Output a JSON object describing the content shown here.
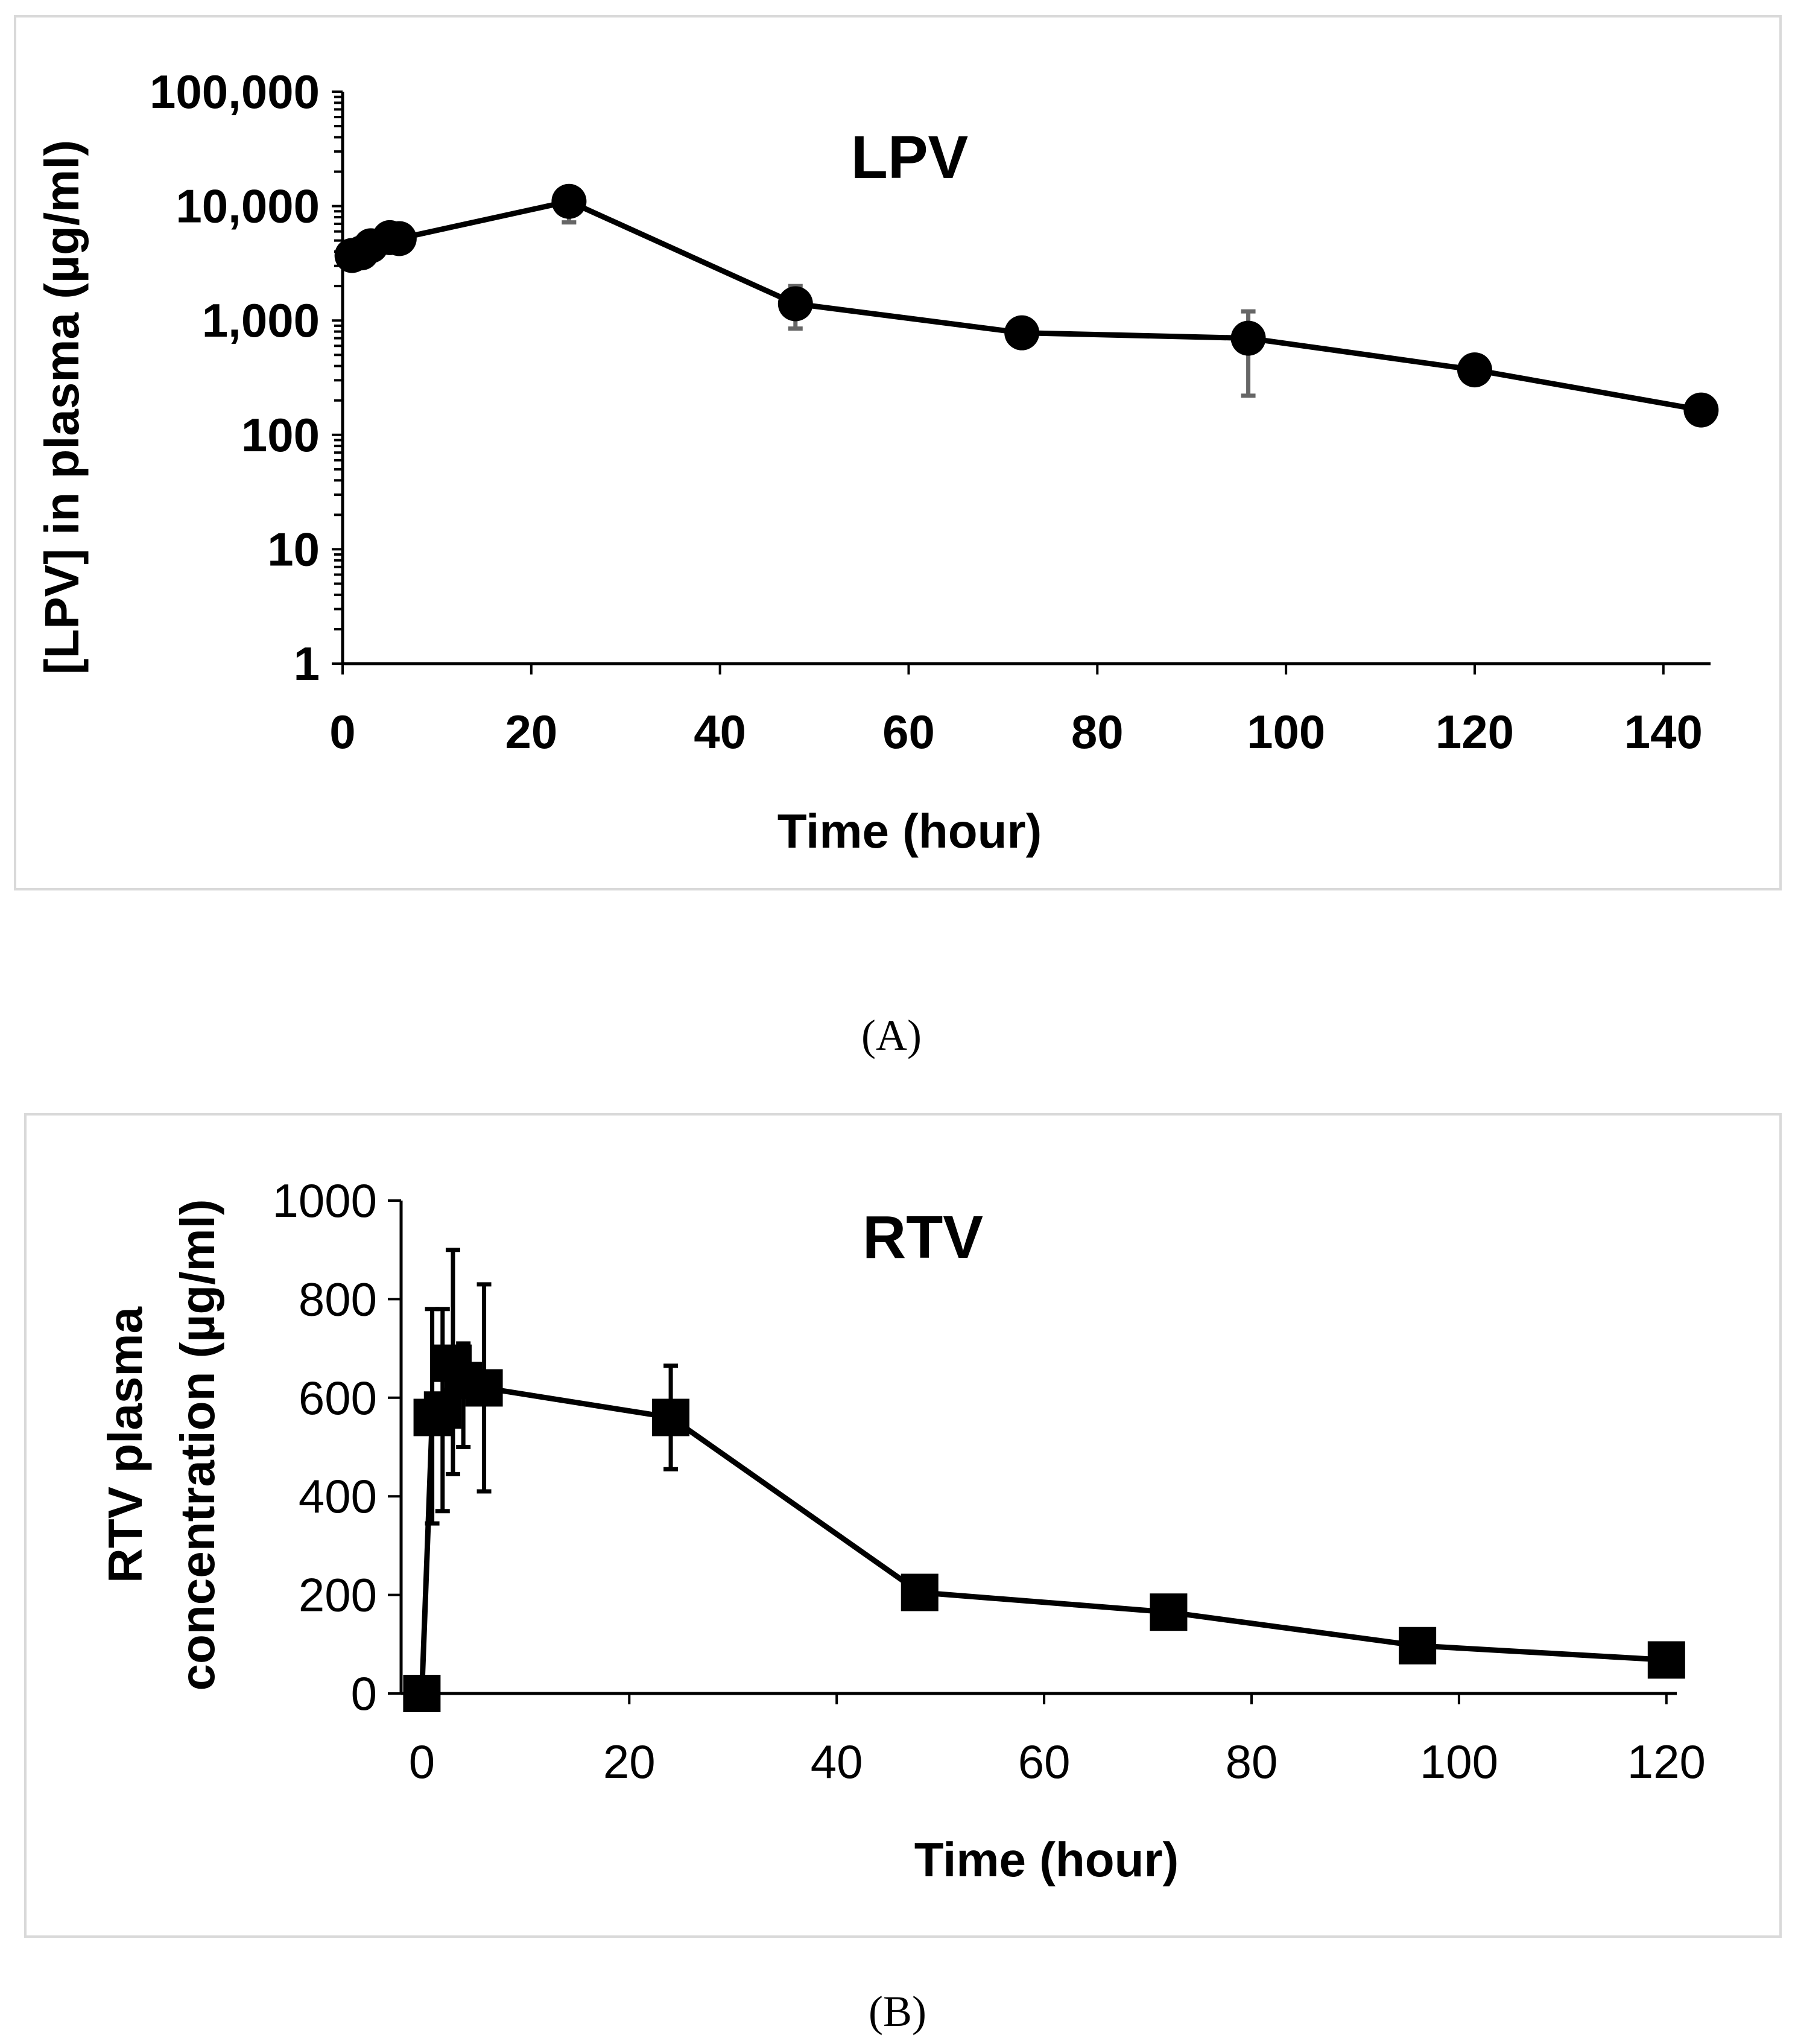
{
  "chart_data": [
    {
      "panel": "(A)",
      "type": "line",
      "title": "LPV",
      "xlabel": "Time (hour)",
      "ylabel": "[LPV] in plasma (µg/ml)",
      "yscale": "log",
      "xlim": [
        0,
        145
      ],
      "ylim": [
        1,
        100000
      ],
      "xticks": [
        0,
        20,
        40,
        60,
        80,
        100,
        120,
        140
      ],
      "xtick_labels": [
        "0",
        "20",
        "40",
        "60",
        "80",
        "100",
        "120",
        "140"
      ],
      "yticks": [
        1,
        10,
        100,
        1000,
        10000,
        100000
      ],
      "ytick_labels": [
        "1",
        "10",
        "100",
        "1,000",
        "10,000",
        "100,000"
      ],
      "marker": "circle",
      "error_bar_color": "#666666",
      "series": [
        {
          "name": "LPV",
          "x": [
            1,
            2,
            3,
            5,
            6,
            24,
            48,
            72,
            96,
            120,
            144
          ],
          "y": [
            3700,
            3900,
            4500,
            5300,
            5200,
            11000,
            1400,
            780,
            700,
            370,
            165
          ],
          "err_low": [
            null,
            null,
            null,
            null,
            null,
            7200,
            850,
            null,
            220,
            null,
            null
          ],
          "err_high": [
            null,
            null,
            null,
            null,
            null,
            13000,
            2000,
            null,
            1200,
            null,
            null
          ]
        }
      ]
    },
    {
      "panel": "(B)",
      "type": "line",
      "title": "RTV",
      "xlabel": "Time (hour)",
      "ylabel_lines": [
        "RTV plasma",
        "concentration (µg/ml)"
      ],
      "yscale": "linear",
      "xlim": [
        -2,
        121
      ],
      "ylim": [
        0,
        1000
      ],
      "xticks": [
        0,
        20,
        40,
        60,
        80,
        100,
        120
      ],
      "xtick_labels": [
        "0",
        "20",
        "40",
        "60",
        "80",
        "100",
        "120"
      ],
      "yticks": [
        0,
        200,
        400,
        600,
        800,
        1000
      ],
      "ytick_labels": [
        "0",
        "200",
        "400",
        "600",
        "800",
        "1000"
      ],
      "marker": "square",
      "error_bar_color": "#000000",
      "series": [
        {
          "name": "RTV",
          "x": [
            0,
            1,
            2,
            3,
            4,
            6,
            24,
            48,
            72,
            96,
            120
          ],
          "y": [
            0,
            560,
            575,
            670,
            635,
            620,
            560,
            205,
            165,
            97,
            68
          ],
          "err_low": [
            null,
            345,
            370,
            445,
            500,
            410,
            455,
            180,
            null,
            null,
            null
          ],
          "err_high": [
            null,
            780,
            780,
            900,
            710,
            830,
            665,
            230,
            null,
            null,
            null
          ]
        }
      ]
    }
  ]
}
